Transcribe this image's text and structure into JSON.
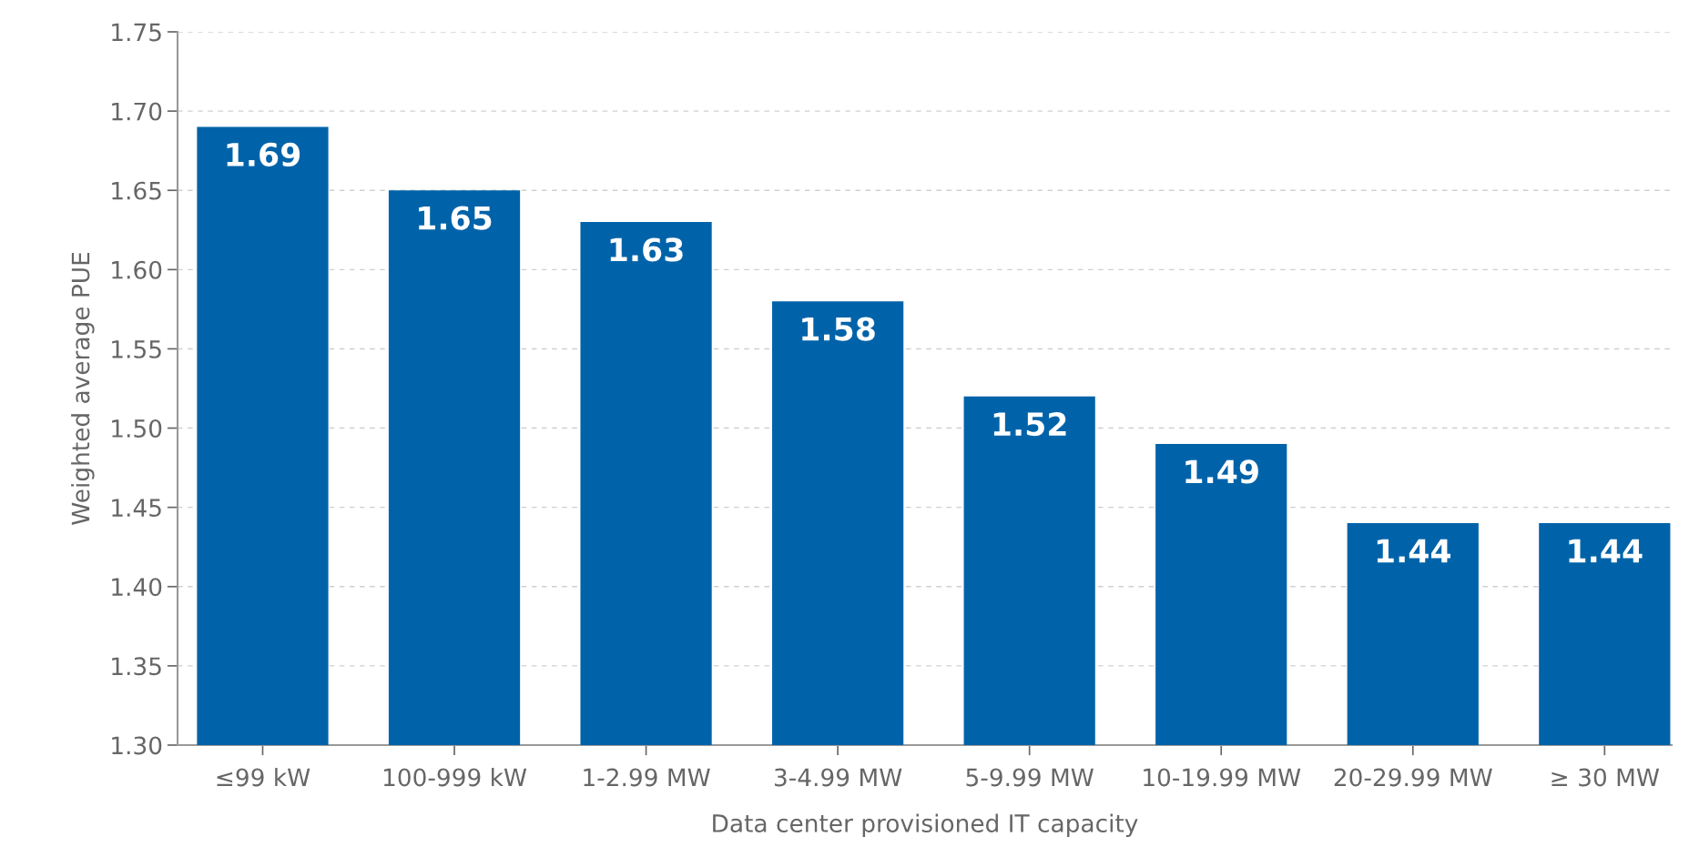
{
  "chart_data": {
    "type": "bar",
    "xlabel": "Data center provisioned IT capacity",
    "ylabel": "Weighted average PUE",
    "categories": [
      "≤99 kW",
      "100-999 kW",
      "1-2.99 MW",
      "3-4.99 MW",
      "5-9.99 MW",
      "10-19.99 MW",
      "20-29.99 MW",
      "≥ 30 MW"
    ],
    "values": [
      1.69,
      1.65,
      1.63,
      1.58,
      1.52,
      1.49,
      1.44,
      1.44
    ],
    "color": "#0063a9",
    "ylim": [
      1.3,
      1.75
    ],
    "yticks": [
      {
        "value": 1.3,
        "label": "1.30"
      },
      {
        "value": 1.35,
        "label": "1.35"
      },
      {
        "value": 1.4,
        "label": "1.40"
      },
      {
        "value": 1.45,
        "label": "1.45"
      },
      {
        "value": 1.5,
        "label": "1.50"
      },
      {
        "value": 1.55,
        "label": "1.55"
      },
      {
        "value": 1.6,
        "label": "1.60"
      },
      {
        "value": 1.65,
        "label": "1.65"
      },
      {
        "value": 1.7,
        "label": "1.70"
      },
      {
        "value": 1.75,
        "label": "1.75"
      }
    ],
    "grid": "y",
    "data_labels": true
  }
}
